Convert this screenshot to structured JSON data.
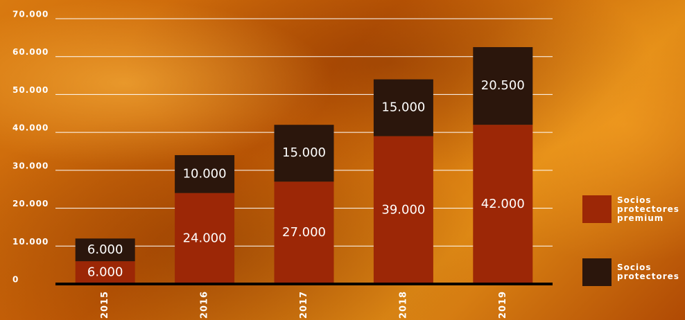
{
  "chart_data": {
    "type": "stacked_bar",
    "categories": [
      "2015",
      "2016",
      "2017",
      "2018",
      "2019"
    ],
    "series": [
      {
        "name": "Socios protectores premium",
        "color": "#9c2706",
        "values": [
          6000,
          24000,
          27000,
          39000,
          42000
        ],
        "value_labels": [
          "6.000",
          "24.000",
          "27.000",
          "39.000",
          "42.000"
        ]
      },
      {
        "name": "Socios protectores",
        "color": "#2b160c",
        "values": [
          6000,
          10000,
          15000,
          15000,
          20500
        ],
        "value_labels": [
          "6.000",
          "10.000",
          "15.000",
          "15.000",
          "20.500"
        ]
      }
    ],
    "ylim": [
      0,
      70000
    ],
    "yticks": [
      0,
      {
        "value": 10000,
        "label": "10.000"
      },
      {
        "value": 20000,
        "label": "20.000"
      },
      {
        "value": 30000,
        "label": "30.000"
      },
      {
        "value": 40000,
        "label": "40.000"
      },
      {
        "value": 50000,
        "label": "50.000"
      },
      {
        "value": 60000,
        "label": "60.000"
      },
      {
        "value": 70000,
        "label": "70.000"
      }
    ],
    "grid": true,
    "legend": "right"
  }
}
